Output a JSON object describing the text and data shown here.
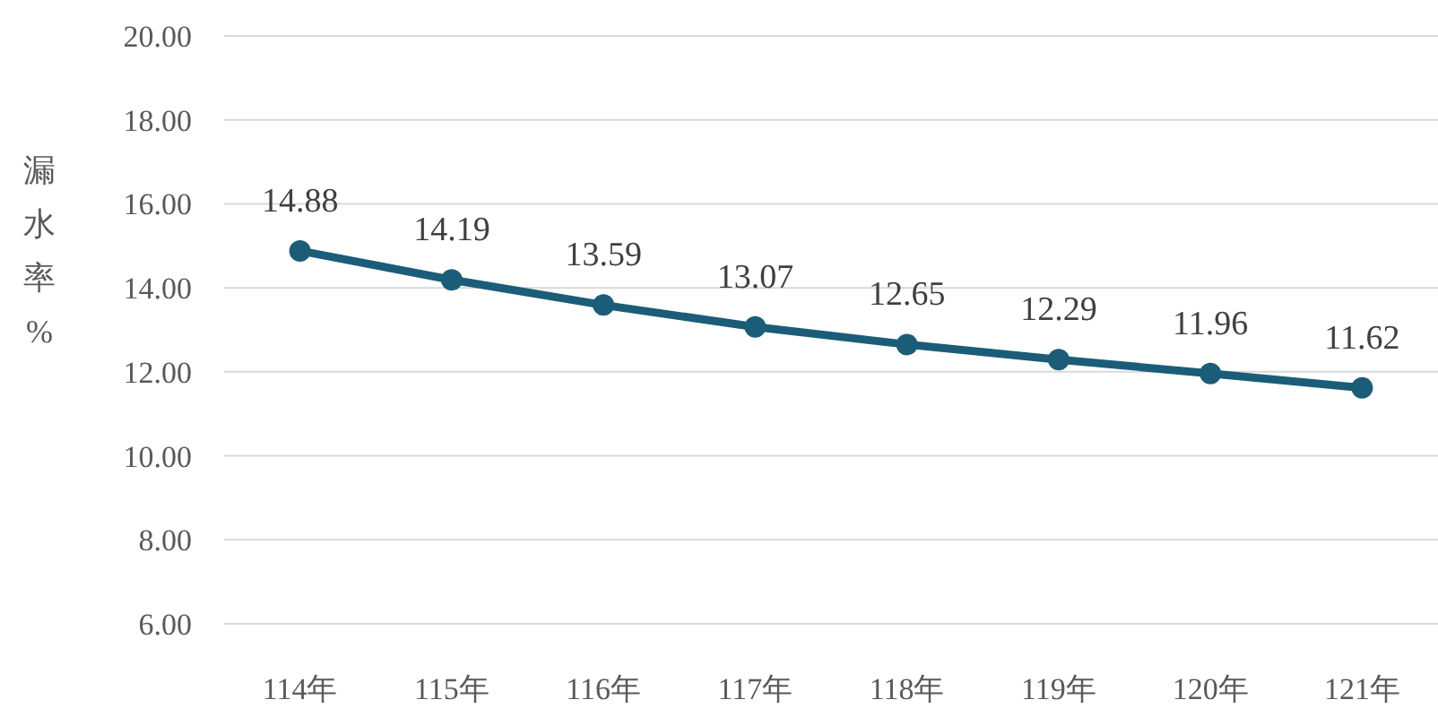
{
  "chart_data": {
    "type": "line",
    "ylabel": "漏水率%",
    "categories": [
      "114年",
      "115年",
      "116年",
      "117年",
      "118年",
      "119年",
      "120年",
      "121年"
    ],
    "series": [
      {
        "color": "#1b5d78",
        "values": [
          14.88,
          14.19,
          13.59,
          13.07,
          12.65,
          12.29,
          11.96,
          11.62
        ]
      }
    ],
    "ylim": [
      6,
      20
    ],
    "yticks": [
      {
        "value": 6,
        "label": "6.00"
      },
      {
        "value": 8,
        "label": "8.00"
      },
      {
        "value": 10,
        "label": "10.00"
      },
      {
        "value": 12,
        "label": "12.00"
      },
      {
        "value": 14,
        "label": "14.00"
      },
      {
        "value": 16,
        "label": "16.00"
      },
      {
        "value": 18,
        "label": "18.00"
      },
      {
        "value": 20,
        "label": "20.00"
      }
    ],
    "grid": "y",
    "marker": "circle",
    "line_style": "solid",
    "data_labels": true
  }
}
